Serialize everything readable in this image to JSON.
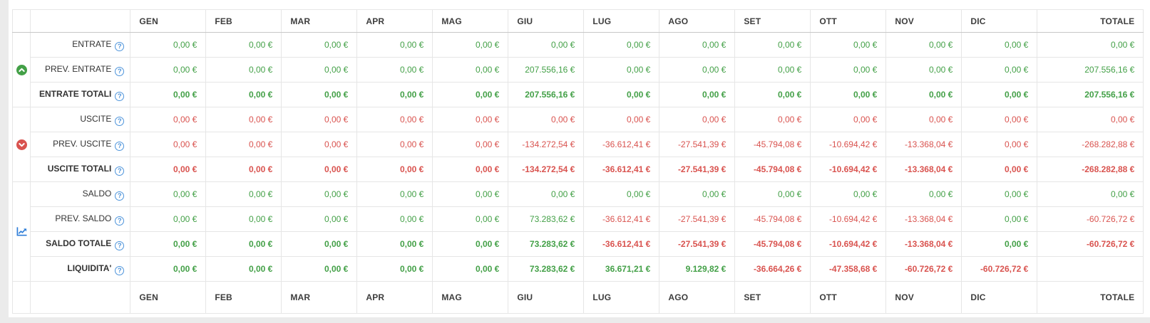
{
  "colors": {
    "positive": "#43a047",
    "negative": "#d9534f",
    "chart_icon": "#2f7ed8",
    "help_icon": "#4d94db"
  },
  "table": {
    "columns": [
      "GEN",
      "FEB",
      "MAR",
      "APR",
      "MAG",
      "GIU",
      "LUG",
      "AGO",
      "SET",
      "OTT",
      "NOV",
      "DIC",
      "TOTALE"
    ],
    "currency_suffix": "€",
    "groups": [
      {
        "icon": "circle-chevron-up-icon",
        "rows": [
          {
            "label": "ENTRATE",
            "bold": false,
            "values": [
              "0,00 €",
              "0,00 €",
              "0,00 €",
              "0,00 €",
              "0,00 €",
              "0,00 €",
              "0,00 €",
              "0,00 €",
              "0,00 €",
              "0,00 €",
              "0,00 €",
              "0,00 €",
              "0,00 €"
            ],
            "colors": [
              "g",
              "g",
              "g",
              "g",
              "g",
              "g",
              "g",
              "g",
              "g",
              "g",
              "g",
              "g",
              "g"
            ]
          },
          {
            "label": "PREV. ENTRATE",
            "bold": false,
            "values": [
              "0,00 €",
              "0,00 €",
              "0,00 €",
              "0,00 €",
              "0,00 €",
              "207.556,16 €",
              "0,00 €",
              "0,00 €",
              "0,00 €",
              "0,00 €",
              "0,00 €",
              "0,00 €",
              "207.556,16 €"
            ],
            "colors": [
              "g",
              "g",
              "g",
              "g",
              "g",
              "g",
              "g",
              "g",
              "g",
              "g",
              "g",
              "g",
              "g"
            ]
          },
          {
            "label": "ENTRATE TOTALI",
            "bold": true,
            "values": [
              "0,00 €",
              "0,00 €",
              "0,00 €",
              "0,00 €",
              "0,00 €",
              "207.556,16 €",
              "0,00 €",
              "0,00 €",
              "0,00 €",
              "0,00 €",
              "0,00 €",
              "0,00 €",
              "207.556,16 €"
            ],
            "colors": [
              "g",
              "g",
              "g",
              "g",
              "g",
              "g",
              "g",
              "g",
              "g",
              "g",
              "g",
              "g",
              "g"
            ]
          }
        ]
      },
      {
        "icon": "circle-chevron-down-icon",
        "rows": [
          {
            "label": "USCITE",
            "bold": false,
            "values": [
              "0,00 €",
              "0,00 €",
              "0,00 €",
              "0,00 €",
              "0,00 €",
              "0,00 €",
              "0,00 €",
              "0,00 €",
              "0,00 €",
              "0,00 €",
              "0,00 €",
              "0,00 €",
              "0,00 €"
            ],
            "colors": [
              "r",
              "r",
              "r",
              "r",
              "r",
              "r",
              "r",
              "r",
              "r",
              "r",
              "r",
              "r",
              "r"
            ]
          },
          {
            "label": "PREV. USCITE",
            "bold": false,
            "values": [
              "0,00 €",
              "0,00 €",
              "0,00 €",
              "0,00 €",
              "0,00 €",
              "-134.272,54 €",
              "-36.612,41 €",
              "-27.541,39 €",
              "-45.794,08 €",
              "-10.694,42 €",
              "-13.368,04 €",
              "0,00 €",
              "-268.282,88 €"
            ],
            "colors": [
              "r",
              "r",
              "r",
              "r",
              "r",
              "r",
              "r",
              "r",
              "r",
              "r",
              "r",
              "r",
              "r"
            ]
          },
          {
            "label": "USCITE TOTALI",
            "bold": true,
            "values": [
              "0,00 €",
              "0,00 €",
              "0,00 €",
              "0,00 €",
              "0,00 €",
              "-134.272,54 €",
              "-36.612,41 €",
              "-27.541,39 €",
              "-45.794,08 €",
              "-10.694,42 €",
              "-13.368,04 €",
              "0,00 €",
              "-268.282,88 €"
            ],
            "colors": [
              "r",
              "r",
              "r",
              "r",
              "r",
              "r",
              "r",
              "r",
              "r",
              "r",
              "r",
              "r",
              "r"
            ]
          }
        ]
      },
      {
        "icon": "chart-line-icon",
        "rows": [
          {
            "label": "SALDO",
            "bold": false,
            "values": [
              "0,00 €",
              "0,00 €",
              "0,00 €",
              "0,00 €",
              "0,00 €",
              "0,00 €",
              "0,00 €",
              "0,00 €",
              "0,00 €",
              "0,00 €",
              "0,00 €",
              "0,00 €",
              "0,00 €"
            ],
            "colors": [
              "g",
              "g",
              "g",
              "g",
              "g",
              "g",
              "g",
              "g",
              "g",
              "g",
              "g",
              "g",
              "g"
            ]
          },
          {
            "label": "PREV. SALDO",
            "bold": false,
            "values": [
              "0,00 €",
              "0,00 €",
              "0,00 €",
              "0,00 €",
              "0,00 €",
              "73.283,62 €",
              "-36.612,41 €",
              "-27.541,39 €",
              "-45.794,08 €",
              "-10.694,42 €",
              "-13.368,04 €",
              "0,00 €",
              "-60.726,72 €"
            ],
            "colors": [
              "g",
              "g",
              "g",
              "g",
              "g",
              "g",
              "r",
              "r",
              "r",
              "r",
              "r",
              "g",
              "r"
            ]
          },
          {
            "label": "SALDO TOTALE",
            "bold": true,
            "values": [
              "0,00 €",
              "0,00 €",
              "0,00 €",
              "0,00 €",
              "0,00 €",
              "73.283,62 €",
              "-36.612,41 €",
              "-27.541,39 €",
              "-45.794,08 €",
              "-10.694,42 €",
              "-13.368,04 €",
              "0,00 €",
              "-60.726,72 €"
            ],
            "colors": [
              "g",
              "g",
              "g",
              "g",
              "g",
              "g",
              "r",
              "r",
              "r",
              "r",
              "r",
              "g",
              "r"
            ]
          },
          {
            "label": "LIQUIDITA'",
            "bold": true,
            "values": [
              "0,00 €",
              "0,00 €",
              "0,00 €",
              "0,00 €",
              "0,00 €",
              "73.283,62 €",
              "36.671,21 €",
              "9.129,82 €",
              "-36.664,26 €",
              "-47.358,68 €",
              "-60.726,72 €",
              "-60.726,72 €",
              ""
            ],
            "colors": [
              "g",
              "g",
              "g",
              "g",
              "g",
              "g",
              "g",
              "g",
              "r",
              "r",
              "r",
              "r",
              ""
            ]
          }
        ]
      }
    ]
  }
}
